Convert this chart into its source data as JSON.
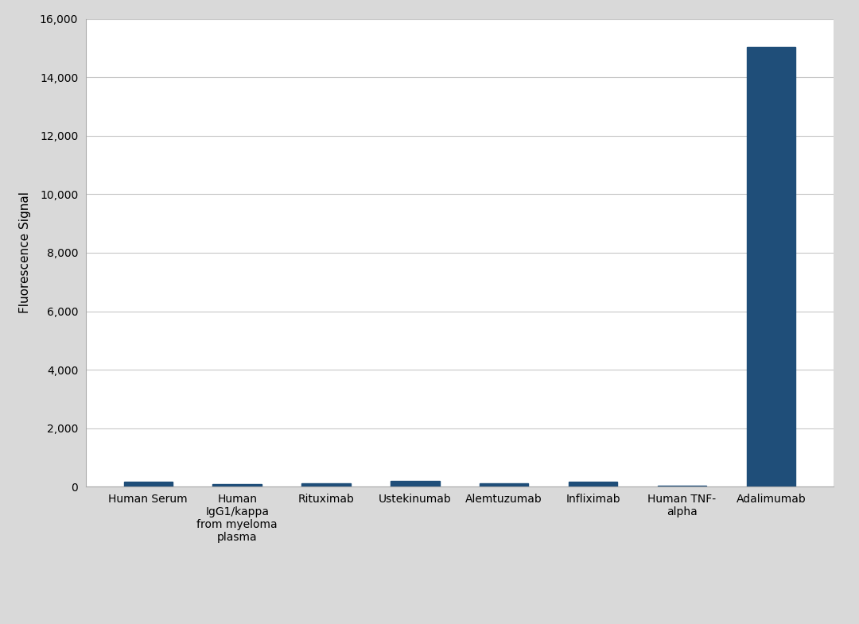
{
  "categories": [
    "Human Serum",
    "Human\nIgG1/kappa\nfrom myeloma\nplasma",
    "Rituximab",
    "Ustekinumab",
    "Alemtuzumab",
    "Infliximab",
    "Human TNF-\nalpha",
    "Adalimumab"
  ],
  "values": [
    170,
    80,
    120,
    200,
    110,
    160,
    30,
    15050
  ],
  "bar_color": "#1F4E79",
  "ylabel": "Fluorescence Signal",
  "ylim": [
    0,
    16000
  ],
  "yticks": [
    0,
    2000,
    4000,
    6000,
    8000,
    10000,
    12000,
    14000,
    16000
  ],
  "figure_background_color": "#d9d9d9",
  "plot_background": "#ffffff",
  "grid_color": "#c8c8c8",
  "bar_width": 0.55,
  "label_fontsize": 11,
  "tick_fontsize": 10,
  "ylabel_fontsize": 11
}
